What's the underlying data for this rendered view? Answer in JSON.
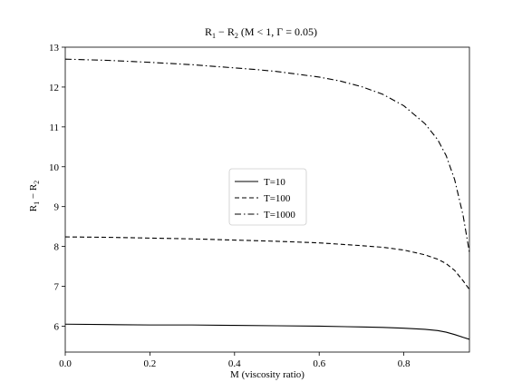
{
  "chart_data": {
    "type": "line",
    "title": {
      "parts": [
        "R",
        "1",
        " − R",
        "2",
        "   (M < 1, Γ = 0.05)"
      ]
    },
    "xlabel": "M (viscosity ratio)",
    "ylabel": {
      "parts": [
        "R",
        "1",
        " − R",
        "2"
      ]
    },
    "xlim": [
      0.0,
      0.955
    ],
    "ylim": [
      5.35,
      13.0
    ],
    "xticks": [
      0.0,
      0.2,
      0.4,
      0.6,
      0.8
    ],
    "xtick_labels": [
      "0.0",
      "0.2",
      "0.4",
      "0.6",
      "0.8"
    ],
    "yticks": [
      6,
      7,
      8,
      9,
      10,
      11,
      12,
      13
    ],
    "ytick_labels": [
      "6",
      "7",
      "8",
      "9",
      "10",
      "11",
      "12",
      "13"
    ],
    "grid": false,
    "legend_position": "center",
    "series": [
      {
        "name": "T=10",
        "style": "solid",
        "color": "#000000",
        "x": [
          0.0,
          0.1,
          0.2,
          0.3,
          0.4,
          0.5,
          0.6,
          0.7,
          0.75,
          0.8,
          0.85,
          0.88,
          0.9,
          0.92,
          0.94,
          0.955
        ],
        "y": [
          6.05,
          6.04,
          6.03,
          6.03,
          6.02,
          6.01,
          6.0,
          5.98,
          5.97,
          5.95,
          5.92,
          5.89,
          5.85,
          5.79,
          5.72,
          5.67
        ]
      },
      {
        "name": "T=100",
        "style": "dashed",
        "color": "#000000",
        "x": [
          0.0,
          0.1,
          0.2,
          0.3,
          0.4,
          0.5,
          0.6,
          0.7,
          0.75,
          0.8,
          0.85,
          0.88,
          0.9,
          0.92,
          0.94,
          0.955
        ],
        "y": [
          8.24,
          8.23,
          8.21,
          8.19,
          8.16,
          8.13,
          8.09,
          8.02,
          7.98,
          7.91,
          7.79,
          7.68,
          7.57,
          7.4,
          7.14,
          6.92
        ]
      },
      {
        "name": "T=1000",
        "style": "dashdot",
        "color": "#000000",
        "x": [
          0.0,
          0.1,
          0.2,
          0.3,
          0.4,
          0.45,
          0.5,
          0.55,
          0.6,
          0.65,
          0.7,
          0.75,
          0.8,
          0.85,
          0.88,
          0.9,
          0.92,
          0.94,
          0.955
        ],
        "y": [
          12.7,
          12.67,
          12.62,
          12.56,
          12.48,
          12.44,
          12.39,
          12.32,
          12.25,
          12.15,
          12.01,
          11.82,
          11.53,
          11.08,
          10.68,
          10.28,
          9.68,
          8.78,
          7.85
        ]
      }
    ]
  }
}
